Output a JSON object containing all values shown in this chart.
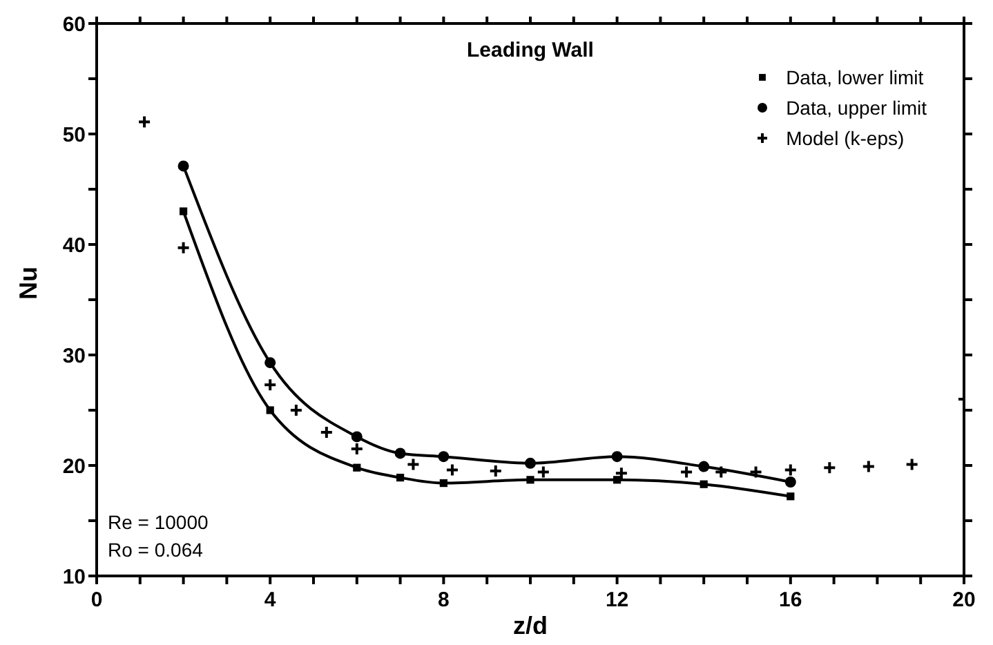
{
  "chart_data": {
    "type": "line",
    "title": "Leading Wall",
    "xlabel": "z/d",
    "ylabel": "Nu",
    "xlim": [
      0,
      20
    ],
    "ylim": [
      10,
      60
    ],
    "xticks": [
      0,
      {
        "value": 1,
        "label": null
      },
      {
        "value": 2,
        "label": null
      },
      {
        "value": 3,
        "label": null
      },
      4,
      {
        "value": 5,
        "label": null
      },
      {
        "value": 6,
        "label": null
      },
      {
        "value": 7,
        "label": null
      },
      8,
      {
        "value": 9,
        "label": null
      },
      {
        "value": 10,
        "label": null
      },
      {
        "value": 11,
        "label": null
      },
      12,
      {
        "value": 13,
        "label": null
      },
      {
        "value": 14,
        "label": null
      },
      {
        "value": 15,
        "label": null
      },
      16,
      {
        "value": 17,
        "label": null
      },
      {
        "value": 18,
        "label": null
      },
      {
        "value": 19,
        "label": null
      },
      20
    ],
    "yticks": [
      10,
      {
        "value": 15,
        "label": null
      },
      20,
      {
        "value": 25,
        "label": null
      },
      30,
      {
        "value": 35,
        "label": null
      },
      40,
      {
        "value": 45,
        "label": null
      },
      50,
      {
        "value": 55,
        "label": null
      },
      60
    ],
    "legend": "top right",
    "annotations": [
      "Re = 10000",
      "Ro = 0.064"
    ],
    "series": [
      {
        "name": "Data, lower limit",
        "marker": "square",
        "color": "#000000",
        "x": [
          2,
          4,
          6,
          7,
          8,
          10,
          12,
          14,
          16
        ],
        "values": [
          43,
          25,
          19.8,
          18.9,
          18.4,
          18.7,
          18.7,
          18.3,
          17.2
        ]
      },
      {
        "name": "Data, upper limit",
        "marker": "circle",
        "color": "#000000",
        "x": [
          2,
          4,
          6,
          7,
          8,
          10,
          12,
          14,
          16
        ],
        "values": [
          47.1,
          29.3,
          22.6,
          21.1,
          20.8,
          20.2,
          20.8,
          19.9,
          18.5
        ]
      },
      {
        "name": "Model (k-eps)",
        "type": "scatter",
        "marker": "cross",
        "color": "#000000",
        "x": [
          1.1,
          2,
          4,
          4.6,
          5.3,
          6,
          7.3,
          8.2,
          9.2,
          10.3,
          12.1,
          13.6,
          14.4,
          15.2,
          16,
          16.9,
          17.8,
          18.8,
          20
        ],
        "values": [
          51.1,
          39.7,
          27.3,
          25,
          23,
          21.5,
          20.1,
          19.6,
          19.5,
          19.4,
          19.3,
          19.4,
          19.4,
          19.4,
          19.6,
          19.8,
          19.9,
          20.1,
          26
        ]
      }
    ]
  }
}
